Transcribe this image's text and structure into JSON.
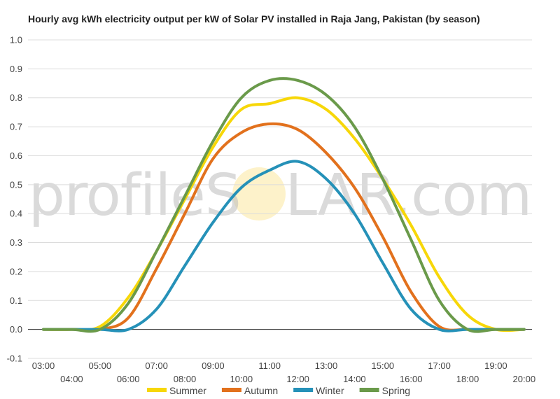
{
  "chart_data": {
    "type": "line",
    "title": "Hourly avg kWh electricity output per kW of Solar PV installed in Raja Jang, Pakistan (by season)",
    "xlabel": "",
    "ylabel": "",
    "ylim": [
      -0.1,
      1.0
    ],
    "yticks": [
      "-0.1",
      "0.0",
      "0.1",
      "0.2",
      "0.3",
      "0.4",
      "0.5",
      "0.6",
      "0.7",
      "0.8",
      "0.9",
      "1.0"
    ],
    "x": [
      "03:00",
      "04:00",
      "05:00",
      "06:00",
      "07:00",
      "08:00",
      "09:00",
      "10:00",
      "11:00",
      "12:00",
      "13:00",
      "14:00",
      "15:00",
      "16:00",
      "17:00",
      "18:00",
      "19:00",
      "20:00"
    ],
    "grid": true,
    "legend_position": "bottom",
    "watermark": {
      "left": "profileS",
      "o": "O",
      "right": "LAR.com"
    },
    "series": [
      {
        "name": "Summer",
        "color": "#f7d708",
        "values": [
          0.0,
          0.0,
          0.01,
          0.11,
          0.27,
          0.45,
          0.63,
          0.76,
          0.78,
          0.8,
          0.76,
          0.66,
          0.52,
          0.36,
          0.18,
          0.05,
          0.0,
          0.0
        ]
      },
      {
        "name": "Autumn",
        "color": "#e2711d",
        "values": [
          0.0,
          0.0,
          0.0,
          0.04,
          0.21,
          0.4,
          0.59,
          0.68,
          0.71,
          0.69,
          0.61,
          0.49,
          0.32,
          0.13,
          0.01,
          0.0,
          0.0,
          0.0
        ]
      },
      {
        "name": "Winter",
        "color": "#2591b8",
        "values": [
          0.0,
          0.0,
          0.0,
          0.0,
          0.07,
          0.22,
          0.37,
          0.49,
          0.55,
          0.58,
          0.52,
          0.4,
          0.23,
          0.07,
          0.0,
          0.0,
          0.0,
          0.0
        ]
      },
      {
        "name": "Spring",
        "color": "#6a9a4a",
        "values": [
          0.0,
          0.0,
          0.0,
          0.09,
          0.27,
          0.46,
          0.65,
          0.8,
          0.86,
          0.86,
          0.81,
          0.7,
          0.52,
          0.31,
          0.1,
          0.0,
          0.0,
          0.0
        ]
      }
    ]
  }
}
